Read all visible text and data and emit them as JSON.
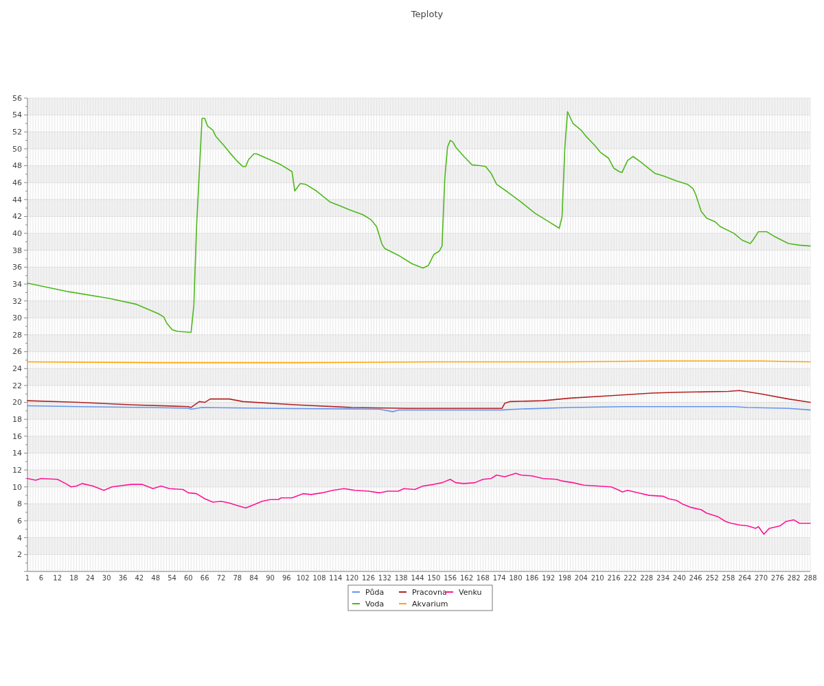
{
  "chart_data": {
    "type": "line",
    "title": "Teploty",
    "xlim": [
      1,
      288
    ],
    "xticks": [
      1,
      {
        "value": 2,
        "label": null
      },
      {
        "value": 3,
        "label": null
      },
      {
        "value": 4,
        "label": null
      },
      {
        "value": 5,
        "label": null
      },
      6,
      {
        "value": 7,
        "label": null
      },
      {
        "value": 8,
        "label": null
      },
      {
        "value": 9,
        "label": null
      },
      {
        "value": 10,
        "label": null
      },
      {
        "value": 11,
        "label": null
      },
      12,
      {
        "value": 13,
        "label": null
      },
      {
        "value": 14,
        "label": null
      },
      {
        "value": 15,
        "label": null
      },
      {
        "value": 16,
        "label": null
      },
      {
        "value": 17,
        "label": null
      },
      18,
      {
        "value": 19,
        "label": null
      },
      {
        "value": 20,
        "label": null
      },
      {
        "value": 21,
        "label": null
      },
      {
        "value": 22,
        "label": null
      },
      {
        "value": 23,
        "label": null
      },
      24,
      {
        "value": 25,
        "label": null
      },
      {
        "value": 26,
        "label": null
      },
      {
        "value": 27,
        "label": null
      },
      {
        "value": 28,
        "label": null
      },
      {
        "value": 29,
        "label": null
      },
      30,
      {
        "value": 31,
        "label": null
      },
      {
        "value": 32,
        "label": null
      },
      {
        "value": 33,
        "label": null
      },
      {
        "value": 34,
        "label": null
      },
      {
        "value": 35,
        "label": null
      },
      36,
      {
        "value": 37,
        "label": null
      },
      {
        "value": 38,
        "label": null
      },
      {
        "value": 39,
        "label": null
      },
      {
        "value": 40,
        "label": null
      },
      {
        "value": 41,
        "label": null
      },
      42,
      {
        "value": 43,
        "label": null
      },
      {
        "value": 44,
        "label": null
      },
      {
        "value": 45,
        "label": null
      },
      {
        "value": 46,
        "label": null
      },
      {
        "value": 47,
        "label": null
      },
      48,
      {
        "value": 49,
        "label": null
      },
      {
        "value": 50,
        "label": null
      },
      {
        "value": 51,
        "label": null
      },
      {
        "value": 52,
        "label": null
      },
      {
        "value": 53,
        "label": null
      },
      54,
      {
        "value": 55,
        "label": null
      },
      {
        "value": 56,
        "label": null
      },
      {
        "value": 57,
        "label": null
      },
      {
        "value": 58,
        "label": null
      },
      {
        "value": 59,
        "label": null
      },
      60,
      {
        "value": 61,
        "label": null
      },
      {
        "value": 62,
        "label": null
      },
      {
        "value": 63,
        "label": null
      },
      {
        "value": 64,
        "label": null
      },
      {
        "value": 65,
        "label": null
      },
      66,
      {
        "value": 67,
        "label": null
      },
      {
        "value": 68,
        "label": null
      },
      {
        "value": 69,
        "label": null
      },
      {
        "value": 70,
        "label": null
      },
      {
        "value": 71,
        "label": null
      },
      72,
      {
        "value": 73,
        "label": null
      },
      {
        "value": 74,
        "label": null
      },
      {
        "value": 75,
        "label": null
      },
      {
        "value": 76,
        "label": null
      },
      {
        "value": 77,
        "label": null
      },
      78,
      {
        "value": 79,
        "label": null
      },
      {
        "value": 80,
        "label": null
      },
      {
        "value": 81,
        "label": null
      },
      {
        "value": 82,
        "label": null
      },
      {
        "value": 83,
        "label": null
      },
      84,
      {
        "value": 85,
        "label": null
      },
      {
        "value": 86,
        "label": null
      },
      {
        "value": 87,
        "label": null
      },
      {
        "value": 88,
        "label": null
      },
      {
        "value": 89,
        "label": null
      },
      90,
      {
        "value": 91,
        "label": null
      },
      {
        "value": 92,
        "label": null
      },
      {
        "value": 93,
        "label": null
      },
      {
        "value": 94,
        "label": null
      },
      {
        "value": 95,
        "label": null
      },
      96,
      {
        "value": 97,
        "label": null
      },
      {
        "value": 98,
        "label": null
      },
      {
        "value": 99,
        "label": null
      },
      {
        "value": 100,
        "label": null
      },
      {
        "value": 101,
        "label": null
      },
      102,
      {
        "value": 103,
        "label": null
      },
      {
        "value": 104,
        "label": null
      },
      {
        "value": 105,
        "label": null
      },
      {
        "value": 106,
        "label": null
      },
      {
        "value": 107,
        "label": null
      },
      108,
      {
        "value": 109,
        "label": null
      },
      {
        "value": 110,
        "label": null
      },
      {
        "value": 111,
        "label": null
      },
      {
        "value": 112,
        "label": null
      },
      {
        "value": 113,
        "label": null
      },
      114,
      {
        "value": 115,
        "label": null
      },
      {
        "value": 116,
        "label": null
      },
      {
        "value": 117,
        "label": null
      },
      {
        "value": 118,
        "label": null
      },
      {
        "value": 119,
        "label": null
      },
      120,
      {
        "value": 121,
        "label": null
      },
      {
        "value": 122,
        "label": null
      },
      {
        "value": 123,
        "label": null
      },
      {
        "value": 124,
        "label": null
      },
      {
        "value": 125,
        "label": null
      },
      126,
      {
        "value": 127,
        "label": null
      },
      {
        "value": 128,
        "label": null
      },
      {
        "value": 129,
        "label": null
      },
      {
        "value": 130,
        "label": null
      },
      {
        "value": 131,
        "label": null
      },
      132,
      {
        "value": 133,
        "label": null
      },
      {
        "value": 134,
        "label": null
      },
      {
        "value": 135,
        "label": null
      },
      {
        "value": 136,
        "label": null
      },
      {
        "value": 137,
        "label": null
      },
      138,
      {
        "value": 139,
        "label": null
      },
      {
        "value": 140,
        "label": null
      },
      {
        "value": 141,
        "label": null
      },
      {
        "value": 142,
        "label": null
      },
      {
        "value": 143,
        "label": null
      },
      144,
      {
        "value": 145,
        "label": null
      },
      {
        "value": 146,
        "label": null
      },
      {
        "value": 147,
        "label": null
      },
      {
        "value": 148,
        "label": null
      },
      {
        "value": 149,
        "label": null
      },
      150,
      {
        "value": 151,
        "label": null
      },
      {
        "value": 152,
        "label": null
      },
      {
        "value": 153,
        "label": null
      },
      {
        "value": 154,
        "label": null
      },
      {
        "value": 155,
        "label": null
      },
      156,
      {
        "value": 157,
        "label": null
      },
      {
        "value": 158,
        "label": null
      },
      {
        "value": 159,
        "label": null
      },
      {
        "value": 160,
        "label": null
      },
      {
        "value": 161,
        "label": null
      },
      162,
      {
        "value": 163,
        "label": null
      },
      {
        "value": 164,
        "label": null
      },
      {
        "value": 165,
        "label": null
      },
      {
        "value": 166,
        "label": null
      },
      {
        "value": 167,
        "label": null
      },
      168,
      {
        "value": 169,
        "label": null
      },
      {
        "value": 170,
        "label": null
      },
      {
        "value": 171,
        "label": null
      },
      {
        "value": 172,
        "label": null
      },
      {
        "value": 173,
        "label": null
      },
      174,
      {
        "value": 175,
        "label": null
      },
      {
        "value": 176,
        "label": null
      },
      {
        "value": 177,
        "label": null
      },
      {
        "value": 178,
        "label": null
      },
      {
        "value": 179,
        "label": null
      },
      180,
      {
        "value": 181,
        "label": null
      },
      {
        "value": 182,
        "label": null
      },
      {
        "value": 183,
        "label": null
      },
      {
        "value": 184,
        "label": null
      },
      {
        "value": 185,
        "label": null
      },
      186,
      {
        "value": 187,
        "label": null
      },
      {
        "value": 188,
        "label": null
      },
      {
        "value": 189,
        "label": null
      },
      {
        "value": 190,
        "label": null
      },
      {
        "value": 191,
        "label": null
      },
      192,
      {
        "value": 193,
        "label": null
      },
      {
        "value": 194,
        "label": null
      },
      {
        "value": 195,
        "label": null
      },
      {
        "value": 196,
        "label": null
      },
      {
        "value": 197,
        "label": null
      },
      198,
      {
        "value": 199,
        "label": null
      },
      {
        "value": 200,
        "label": null
      },
      {
        "value": 201,
        "label": null
      },
      {
        "value": 202,
        "label": null
      },
      {
        "value": 203,
        "label": null
      },
      204,
      {
        "value": 205,
        "label": null
      },
      {
        "value": 206,
        "label": null
      },
      {
        "value": 207,
        "label": null
      },
      {
        "value": 208,
        "label": null
      },
      {
        "value": 209,
        "label": null
      },
      210,
      {
        "value": 211,
        "label": null
      },
      {
        "value": 212,
        "label": null
      },
      {
        "value": 213,
        "label": null
      },
      {
        "value": 214,
        "label": null
      },
      {
        "value": 215,
        "label": null
      },
      216,
      {
        "value": 217,
        "label": null
      },
      {
        "value": 218,
        "label": null
      },
      {
        "value": 219,
        "label": null
      },
      {
        "value": 220,
        "label": null
      },
      {
        "value": 221,
        "label": null
      },
      222,
      {
        "value": 223,
        "label": null
      },
      {
        "value": 224,
        "label": null
      },
      {
        "value": 225,
        "label": null
      },
      {
        "value": 226,
        "label": null
      },
      {
        "value": 227,
        "label": null
      },
      228,
      {
        "value": 229,
        "label": null
      },
      {
        "value": 230,
        "label": null
      },
      {
        "value": 231,
        "label": null
      },
      {
        "value": 232,
        "label": null
      },
      {
        "value": 233,
        "label": null
      },
      234,
      {
        "value": 235,
        "label": null
      },
      {
        "value": 236,
        "label": null
      },
      {
        "value": 237,
        "label": null
      },
      {
        "value": 238,
        "label": null
      },
      {
        "value": 239,
        "label": null
      },
      240,
      {
        "value": 241,
        "label": null
      },
      {
        "value": 242,
        "label": null
      },
      {
        "value": 243,
        "label": null
      },
      {
        "value": 244,
        "label": null
      },
      {
        "value": 245,
        "label": null
      },
      246,
      {
        "value": 247,
        "label": null
      },
      {
        "value": 248,
        "label": null
      },
      {
        "value": 249,
        "label": null
      },
      {
        "value": 250,
        "label": null
      },
      {
        "value": 251,
        "label": null
      },
      252,
      {
        "value": 253,
        "label": null
      },
      {
        "value": 254,
        "label": null
      },
      {
        "value": 255,
        "label": null
      },
      {
        "value": 256,
        "label": null
      },
      {
        "value": 257,
        "label": null
      },
      258,
      {
        "value": 259,
        "label": null
      },
      {
        "value": 260,
        "label": null
      },
      {
        "value": 261,
        "label": null
      },
      {
        "value": 262,
        "label": null
      },
      {
        "value": 263,
        "label": null
      },
      264,
      {
        "value": 265,
        "label": null
      },
      {
        "value": 266,
        "label": null
      },
      {
        "value": 267,
        "label": null
      },
      {
        "value": 268,
        "label": null
      },
      {
        "value": 269,
        "label": null
      },
      270,
      {
        "value": 271,
        "label": null
      },
      {
        "value": 272,
        "label": null
      },
      {
        "value": 273,
        "label": null
      },
      {
        "value": 274,
        "label": null
      },
      {
        "value": 275,
        "label": null
      },
      276,
      {
        "value": 277,
        "label": null
      },
      {
        "value": 278,
        "label": null
      },
      {
        "value": 279,
        "label": null
      },
      {
        "value": 280,
        "label": null
      },
      {
        "value": 281,
        "label": null
      },
      282,
      {
        "value": 283,
        "label": null
      },
      {
        "value": 284,
        "label": null
      },
      {
        "value": 285,
        "label": null
      },
      {
        "value": 286,
        "label": null
      },
      {
        "value": 287,
        "label": null
      },
      288
    ],
    "ylim": [
      0,
      56
    ],
    "yticks": [
      {
        "value": 0,
        "label": null
      },
      2,
      4,
      6,
      8,
      10,
      12,
      14,
      16,
      18,
      20,
      22,
      24,
      26,
      28,
      30,
      32,
      34,
      36,
      38,
      40,
      42,
      44,
      46,
      48,
      50,
      52,
      54,
      56
    ],
    "grid": true,
    "legend": "bottom",
    "series": [
      {
        "name": "Půda",
        "color": "#6495ed",
        "x": [
          1,
          20,
          45,
          60,
          61,
          65,
          90,
          130,
          135,
          137,
          175,
          180,
          200,
          220,
          260,
          265,
          280,
          288
        ],
        "values": [
          19.6,
          19.5,
          19.4,
          19.3,
          19.2,
          19.4,
          19.3,
          19.2,
          18.9,
          19.1,
          19.1,
          19.2,
          19.4,
          19.5,
          19.5,
          19.4,
          19.3,
          19.1
        ]
      },
      {
        "name": "Voda",
        "color": "#4cb81a",
        "x": [
          1,
          16,
          31,
          41,
          49,
          51,
          52,
          54,
          56,
          60,
          61,
          62,
          63,
          65,
          66,
          67,
          69,
          70,
          73,
          75,
          78,
          80,
          81,
          82,
          84,
          85,
          90,
          94,
          98,
          99,
          101,
          103,
          107,
          112,
          116,
          119,
          124,
          127,
          129,
          131,
          132,
          137,
          142,
          146,
          148,
          150,
          152,
          153,
          154,
          155,
          156,
          157,
          158,
          161,
          164,
          167,
          169,
          171,
          173,
          177,
          182,
          187,
          192,
          195,
          196,
          197,
          198,
          199,
          201,
          204,
          206,
          209,
          211,
          214,
          216,
          218,
          219,
          221,
          223,
          226,
          231,
          234,
          239,
          243,
          245,
          246,
          248,
          250,
          253,
          255,
          260,
          263,
          266,
          267,
          269,
          272,
          275,
          280,
          284,
          288
        ],
        "values": [
          34.1,
          33.1,
          32.3,
          31.6,
          30.5,
          30.1,
          29.4,
          28.6,
          28.4,
          28.3,
          28.3,
          31.5,
          40.8,
          53.6,
          53.6,
          52.7,
          52.2,
          51.5,
          50.4,
          49.6,
          48.5,
          47.9,
          47.9,
          48.7,
          49.4,
          49.4,
          48.7,
          48.1,
          47.3,
          45.0,
          45.9,
          45.8,
          45.0,
          43.7,
          43.2,
          42.8,
          42.2,
          41.6,
          40.8,
          38.7,
          38.2,
          37.4,
          36.4,
          35.9,
          36.2,
          37.5,
          37.9,
          38.5,
          46.5,
          50.2,
          51.0,
          50.8,
          50.2,
          49.1,
          48.1,
          48.0,
          47.9,
          47.1,
          45.8,
          44.9,
          43.7,
          42.4,
          41.4,
          40.8,
          40.6,
          42.0,
          50.0,
          54.4,
          53.0,
          52.2,
          51.4,
          50.4,
          49.6,
          48.9,
          47.7,
          47.3,
          47.2,
          48.6,
          49.1,
          48.4,
          47.1,
          46.8,
          46.2,
          45.8,
          45.3,
          44.6,
          42.6,
          41.8,
          41.4,
          40.8,
          40.0,
          39.2,
          38.8,
          39.2,
          40.2,
          40.2,
          39.6,
          38.8,
          38.6,
          38.5
        ]
      },
      {
        "name": "Pracovna",
        "color": "#b22222",
        "x": [
          1,
          20,
          40,
          60,
          61,
          64,
          66,
          68,
          75,
          80,
          100,
          120,
          140,
          175,
          176,
          178,
          190,
          200,
          215,
          230,
          240,
          258,
          262,
          270,
          280,
          288
        ],
        "values": [
          20.2,
          20.0,
          19.7,
          19.5,
          19.4,
          20.1,
          20.0,
          20.4,
          20.4,
          20.1,
          19.7,
          19.4,
          19.3,
          19.3,
          19.9,
          20.1,
          20.2,
          20.5,
          20.8,
          21.1,
          21.2,
          21.3,
          21.4,
          21.0,
          20.4,
          20.0
        ]
      },
      {
        "name": "Akvarium",
        "color": "#ffa500",
        "x": [
          1,
          50,
          100,
          150,
          200,
          230,
          250,
          270,
          288
        ],
        "values": [
          24.8,
          24.7,
          24.7,
          24.8,
          24.8,
          24.9,
          24.9,
          24.9,
          24.8
        ]
      },
      {
        "name": "Venku",
        "color": "#ff1493",
        "x": [
          1,
          4,
          6,
          12,
          15,
          17,
          19,
          21,
          25,
          29,
          32,
          39,
          43,
          47,
          50,
          53,
          58,
          60,
          63,
          66,
          69,
          72,
          75,
          78,
          81,
          84,
          87,
          90,
          93,
          94,
          98,
          102,
          105,
          109,
          113,
          117,
          121,
          126,
          130,
          133,
          137,
          139,
          143,
          146,
          150,
          153,
          156,
          158,
          161,
          165,
          168,
          171,
          173,
          176,
          180,
          182,
          186,
          190,
          195,
          197,
          201,
          205,
          210,
          215,
          218,
          219,
          221,
          225,
          229,
          234,
          236,
          239,
          241,
          244,
          248,
          250,
          254,
          257,
          259,
          262,
          265,
          268,
          269,
          271,
          273,
          277,
          279,
          282,
          284,
          288
        ],
        "values": [
          11.0,
          10.8,
          11.0,
          10.9,
          10.4,
          10.0,
          10.1,
          10.4,
          10.1,
          9.6,
          10.0,
          10.3,
          10.3,
          9.8,
          10.1,
          9.8,
          9.7,
          9.3,
          9.2,
          8.6,
          8.2,
          8.3,
          8.1,
          7.8,
          7.5,
          7.9,
          8.3,
          8.5,
          8.5,
          8.7,
          8.7,
          9.2,
          9.1,
          9.3,
          9.6,
          9.8,
          9.6,
          9.5,
          9.3,
          9.5,
          9.5,
          9.8,
          9.7,
          10.1,
          10.3,
          10.5,
          10.9,
          10.5,
          10.4,
          10.5,
          10.9,
          11.0,
          11.4,
          11.2,
          11.6,
          11.4,
          11.3,
          11.0,
          10.9,
          10.7,
          10.5,
          10.2,
          10.1,
          10.0,
          9.6,
          9.4,
          9.6,
          9.3,
          9.0,
          8.9,
          8.6,
          8.4,
          8.0,
          7.6,
          7.3,
          6.9,
          6.5,
          5.9,
          5.7,
          5.5,
          5.4,
          5.1,
          5.3,
          4.4,
          5.1,
          5.4,
          5.9,
          6.1,
          5.7,
          5.7
        ]
      }
    ]
  }
}
